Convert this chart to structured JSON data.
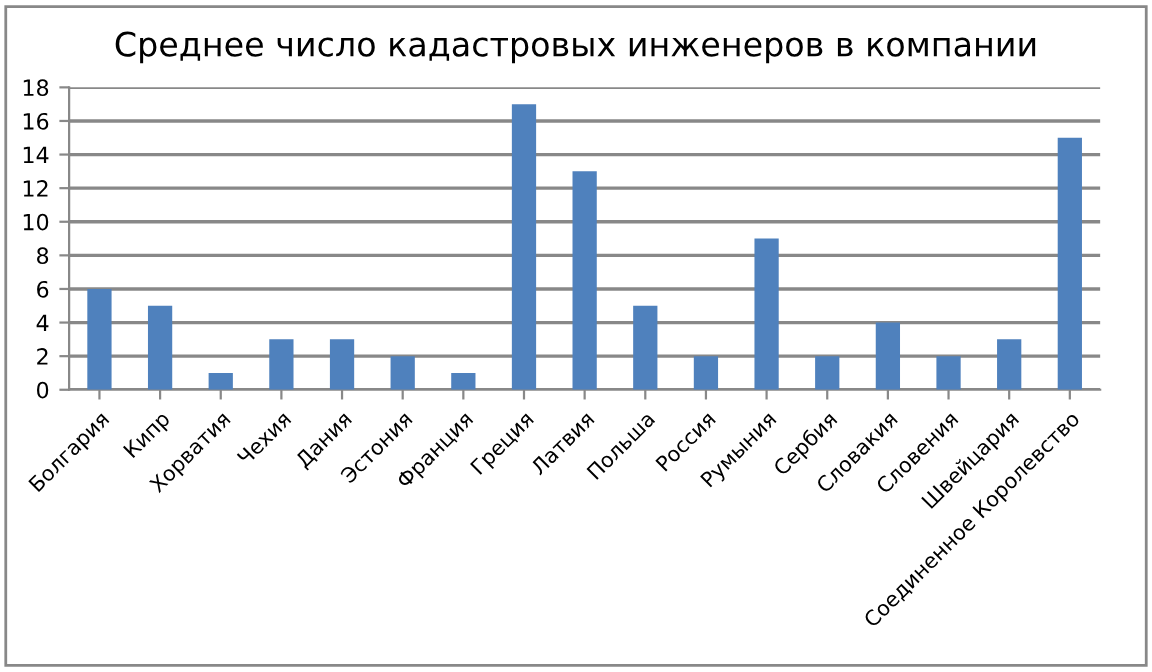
{
  "chart_data": {
    "type": "bar",
    "title": "Среднее число кадастровых инженеров в компании",
    "categories": [
      "Болгария",
      "Кипр",
      "Хорватия",
      "Чехия",
      "Дания",
      "Эстония",
      "Франция",
      "Греция",
      "Латвия",
      "Польша",
      "Россия",
      "Румыния",
      "Сербия",
      "Словакия",
      "Словения",
      "Швейцария",
      "Соединенное Королевство"
    ],
    "values": [
      6,
      5,
      1,
      3,
      3,
      2,
      1,
      17,
      13,
      5,
      2,
      9,
      2,
      4,
      2,
      3,
      15
    ],
    "color": "#4f81bd",
    "ylim": [
      0,
      18
    ],
    "yticks": [
      0,
      2,
      4,
      6,
      8,
      10,
      12,
      14,
      16,
      18
    ],
    "grid": "y"
  }
}
